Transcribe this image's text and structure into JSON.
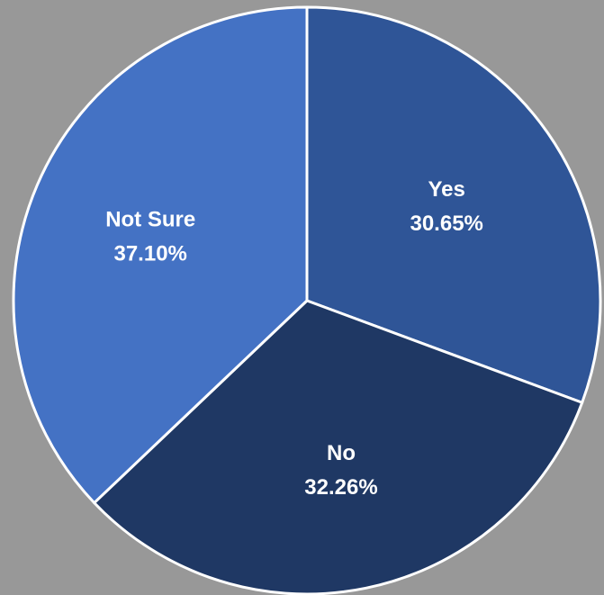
{
  "chart_data": {
    "type": "pie",
    "title": "",
    "start_angle_deg": 0,
    "direction": "clockwise",
    "slices": [
      {
        "label": "Yes",
        "value": 30.65,
        "value_text": "30.65%",
        "color": "#2F5597"
      },
      {
        "label": "No",
        "value": 32.26,
        "value_text": "32.26%",
        "color": "#1F3864"
      },
      {
        "label": "Not Sure",
        "value": 37.1,
        "value_text": "37.10%",
        "color": "#4472C4"
      }
    ],
    "slice_border_color": "#FFFFFF",
    "label_color": "#FFFFFF"
  },
  "background_color": "#989898"
}
